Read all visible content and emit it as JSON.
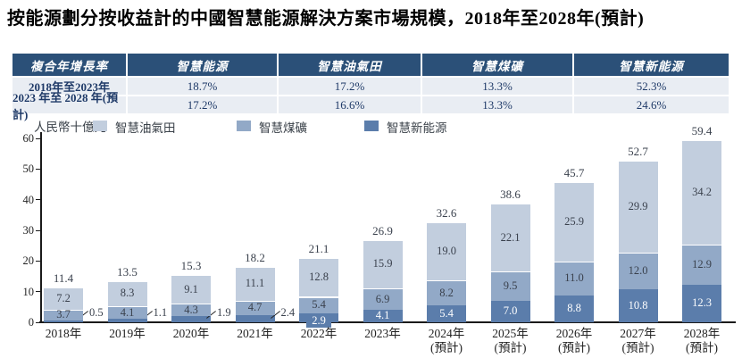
{
  "title": "按能源劃分按收益計的中國智慧能源解決方案市場規模，2018年至2028年(預計)",
  "cagr_table": {
    "headers": [
      "複合年增長率",
      "智慧能源",
      "智慧油氣田",
      "智慧煤礦",
      "智慧新能源"
    ],
    "rows": [
      {
        "label": "2018年至2023年",
        "values": [
          "18.7%",
          "17.2%",
          "13.3%",
          "52.3%"
        ]
      },
      {
        "label": "2023 年至 2028 年(預計)",
        "values": [
          "17.2%",
          "16.6%",
          "13.3%",
          "24.6%"
        ]
      }
    ]
  },
  "chart_data": {
    "type": "bar",
    "stacked": true,
    "title": "按能源劃分按收益計的中國智慧能源解決方案市場規模，2018年至2028年(預計)",
    "ylabel": "人民幣十億元",
    "ylim": [
      0,
      60
    ],
    "yticks": [
      0,
      10,
      20,
      30,
      40,
      50,
      60
    ],
    "grid": false,
    "legend_position": "top",
    "categories": [
      "2018年",
      "2019年",
      "2020年",
      "2021年",
      "2022年",
      "2023年",
      "2024年",
      "2025年",
      "2026年",
      "2027年",
      "2028年"
    ],
    "category_suffixes": [
      "",
      "",
      "",
      "",
      "",
      "",
      "(預計)",
      "(預計)",
      "(預計)",
      "(預計)",
      "(預計)"
    ],
    "series": [
      {
        "name": "智慧油氣田",
        "color": "#c2cede",
        "values": [
          7.2,
          8.3,
          9.1,
          11.1,
          12.8,
          15.9,
          19.0,
          22.1,
          25.9,
          29.9,
          34.2
        ]
      },
      {
        "name": "智慧煤礦",
        "color": "#92a9c7",
        "values": [
          3.7,
          4.1,
          4.3,
          4.7,
          5.4,
          6.9,
          8.2,
          9.5,
          11.0,
          12.0,
          12.9
        ]
      },
      {
        "name": "智慧新能源",
        "color": "#5b7dab",
        "values": [
          0.5,
          1.1,
          1.9,
          2.4,
          2.9,
          4.1,
          5.4,
          7.0,
          8.8,
          10.8,
          12.3
        ]
      }
    ],
    "stack_order_bottom_to_top": [
      "智慧新能源",
      "智慧煤礦",
      "智慧油氣田"
    ],
    "totals": [
      11.4,
      13.5,
      15.3,
      18.2,
      21.1,
      26.9,
      32.6,
      38.6,
      45.7,
      52.7,
      59.4
    ]
  },
  "colors": {
    "table_header_bg": "#2b5078",
    "table_row_bg": "#e9edf3",
    "table_text": "#1f3a68",
    "oil_gas": "#c2cede",
    "coal": "#92a9c7",
    "new_energy": "#5b7dab"
  }
}
